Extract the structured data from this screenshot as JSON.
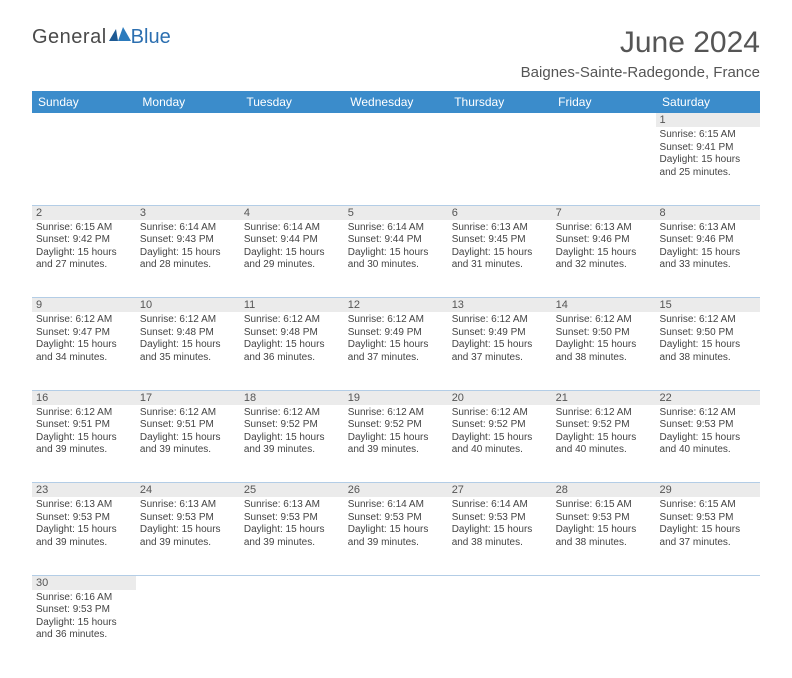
{
  "logo": {
    "text1": "General",
    "text2": "Blue"
  },
  "title": "June 2024",
  "location": "Baignes-Sainte-Radegonde, France",
  "colors": {
    "header_bg": "#3b8ccb",
    "daynum_bg": "#ebebeb",
    "rule": "#3b8ccb",
    "text": "#555"
  },
  "day_headers": [
    "Sunday",
    "Monday",
    "Tuesday",
    "Wednesday",
    "Thursday",
    "Friday",
    "Saturday"
  ],
  "weeks": [
    [
      null,
      null,
      null,
      null,
      null,
      null,
      {
        "d": "1",
        "sr": "6:15 AM",
        "ss": "9:41 PM",
        "dl": "15 hours and 25 minutes."
      }
    ],
    [
      {
        "d": "2",
        "sr": "6:15 AM",
        "ss": "9:42 PM",
        "dl": "15 hours and 27 minutes."
      },
      {
        "d": "3",
        "sr": "6:14 AM",
        "ss": "9:43 PM",
        "dl": "15 hours and 28 minutes."
      },
      {
        "d": "4",
        "sr": "6:14 AM",
        "ss": "9:44 PM",
        "dl": "15 hours and 29 minutes."
      },
      {
        "d": "5",
        "sr": "6:14 AM",
        "ss": "9:44 PM",
        "dl": "15 hours and 30 minutes."
      },
      {
        "d": "6",
        "sr": "6:13 AM",
        "ss": "9:45 PM",
        "dl": "15 hours and 31 minutes."
      },
      {
        "d": "7",
        "sr": "6:13 AM",
        "ss": "9:46 PM",
        "dl": "15 hours and 32 minutes."
      },
      {
        "d": "8",
        "sr": "6:13 AM",
        "ss": "9:46 PM",
        "dl": "15 hours and 33 minutes."
      }
    ],
    [
      {
        "d": "9",
        "sr": "6:12 AM",
        "ss": "9:47 PM",
        "dl": "15 hours and 34 minutes."
      },
      {
        "d": "10",
        "sr": "6:12 AM",
        "ss": "9:48 PM",
        "dl": "15 hours and 35 minutes."
      },
      {
        "d": "11",
        "sr": "6:12 AM",
        "ss": "9:48 PM",
        "dl": "15 hours and 36 minutes."
      },
      {
        "d": "12",
        "sr": "6:12 AM",
        "ss": "9:49 PM",
        "dl": "15 hours and 37 minutes."
      },
      {
        "d": "13",
        "sr": "6:12 AM",
        "ss": "9:49 PM",
        "dl": "15 hours and 37 minutes."
      },
      {
        "d": "14",
        "sr": "6:12 AM",
        "ss": "9:50 PM",
        "dl": "15 hours and 38 minutes."
      },
      {
        "d": "15",
        "sr": "6:12 AM",
        "ss": "9:50 PM",
        "dl": "15 hours and 38 minutes."
      }
    ],
    [
      {
        "d": "16",
        "sr": "6:12 AM",
        "ss": "9:51 PM",
        "dl": "15 hours and 39 minutes."
      },
      {
        "d": "17",
        "sr": "6:12 AM",
        "ss": "9:51 PM",
        "dl": "15 hours and 39 minutes."
      },
      {
        "d": "18",
        "sr": "6:12 AM",
        "ss": "9:52 PM",
        "dl": "15 hours and 39 minutes."
      },
      {
        "d": "19",
        "sr": "6:12 AM",
        "ss": "9:52 PM",
        "dl": "15 hours and 39 minutes."
      },
      {
        "d": "20",
        "sr": "6:12 AM",
        "ss": "9:52 PM",
        "dl": "15 hours and 40 minutes."
      },
      {
        "d": "21",
        "sr": "6:12 AM",
        "ss": "9:52 PM",
        "dl": "15 hours and 40 minutes."
      },
      {
        "d": "22",
        "sr": "6:12 AM",
        "ss": "9:53 PM",
        "dl": "15 hours and 40 minutes."
      }
    ],
    [
      {
        "d": "23",
        "sr": "6:13 AM",
        "ss": "9:53 PM",
        "dl": "15 hours and 39 minutes."
      },
      {
        "d": "24",
        "sr": "6:13 AM",
        "ss": "9:53 PM",
        "dl": "15 hours and 39 minutes."
      },
      {
        "d": "25",
        "sr": "6:13 AM",
        "ss": "9:53 PM",
        "dl": "15 hours and 39 minutes."
      },
      {
        "d": "26",
        "sr": "6:14 AM",
        "ss": "9:53 PM",
        "dl": "15 hours and 39 minutes."
      },
      {
        "d": "27",
        "sr": "6:14 AM",
        "ss": "9:53 PM",
        "dl": "15 hours and 38 minutes."
      },
      {
        "d": "28",
        "sr": "6:15 AM",
        "ss": "9:53 PM",
        "dl": "15 hours and 38 minutes."
      },
      {
        "d": "29",
        "sr": "6:15 AM",
        "ss": "9:53 PM",
        "dl": "15 hours and 37 minutes."
      }
    ],
    [
      {
        "d": "30",
        "sr": "6:16 AM",
        "ss": "9:53 PM",
        "dl": "15 hours and 36 minutes."
      },
      null,
      null,
      null,
      null,
      null,
      null
    ]
  ],
  "labels": {
    "sunrise": "Sunrise:",
    "sunset": "Sunset:",
    "daylight": "Daylight:"
  }
}
